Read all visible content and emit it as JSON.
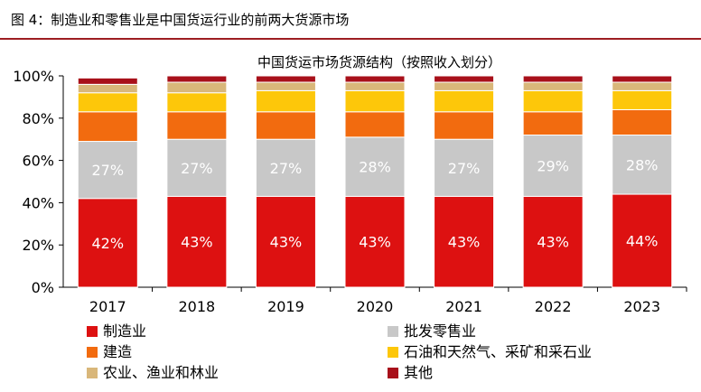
{
  "figure_title": "图 4：制造业和零售业是中国货运行业的前两大货源市场",
  "chart_data": {
    "type": "bar",
    "stacked": true,
    "title": "中国货运市场货源结构（按照收入划分）",
    "xlabel": "",
    "ylabel": "",
    "ylim": [
      0,
      100
    ],
    "y_ticks": [
      "0%",
      "20%",
      "40%",
      "60%",
      "80%",
      "100%"
    ],
    "categories": [
      "2017",
      "2018",
      "2019",
      "2020",
      "2021",
      "2022",
      "2023"
    ],
    "legend_position": "bottom",
    "grid": false,
    "series": [
      {
        "name": "制造业",
        "color": "#dd1111",
        "values": [
          42,
          43,
          43,
          43,
          43,
          43,
          44
        ],
        "labels": [
          "42%",
          "43%",
          "43%",
          "43%",
          "43%",
          "43%",
          "44%"
        ]
      },
      {
        "name": "批发零售业",
        "color": "#c8c8c8",
        "values": [
          27,
          27,
          27,
          28,
          27,
          29,
          28
        ],
        "labels": [
          "27%",
          "27%",
          "27%",
          "28%",
          "27%",
          "29%",
          "28%"
        ]
      },
      {
        "name": "建造",
        "color": "#f26b0f",
        "values": [
          14,
          13,
          13,
          12,
          13,
          11,
          12
        ]
      },
      {
        "name": "石油和天然气、采矿和采石业",
        "color": "#fdc70a",
        "values": [
          9,
          9,
          10,
          10,
          10,
          10,
          9
        ]
      },
      {
        "name": "农业、渔业和林业",
        "color": "#d9b77a",
        "values": [
          4,
          5,
          4,
          4,
          4,
          4,
          4
        ]
      },
      {
        "name": "其他",
        "color": "#a8101a",
        "values": [
          3,
          3,
          3,
          3,
          3,
          3,
          3
        ]
      }
    ]
  }
}
